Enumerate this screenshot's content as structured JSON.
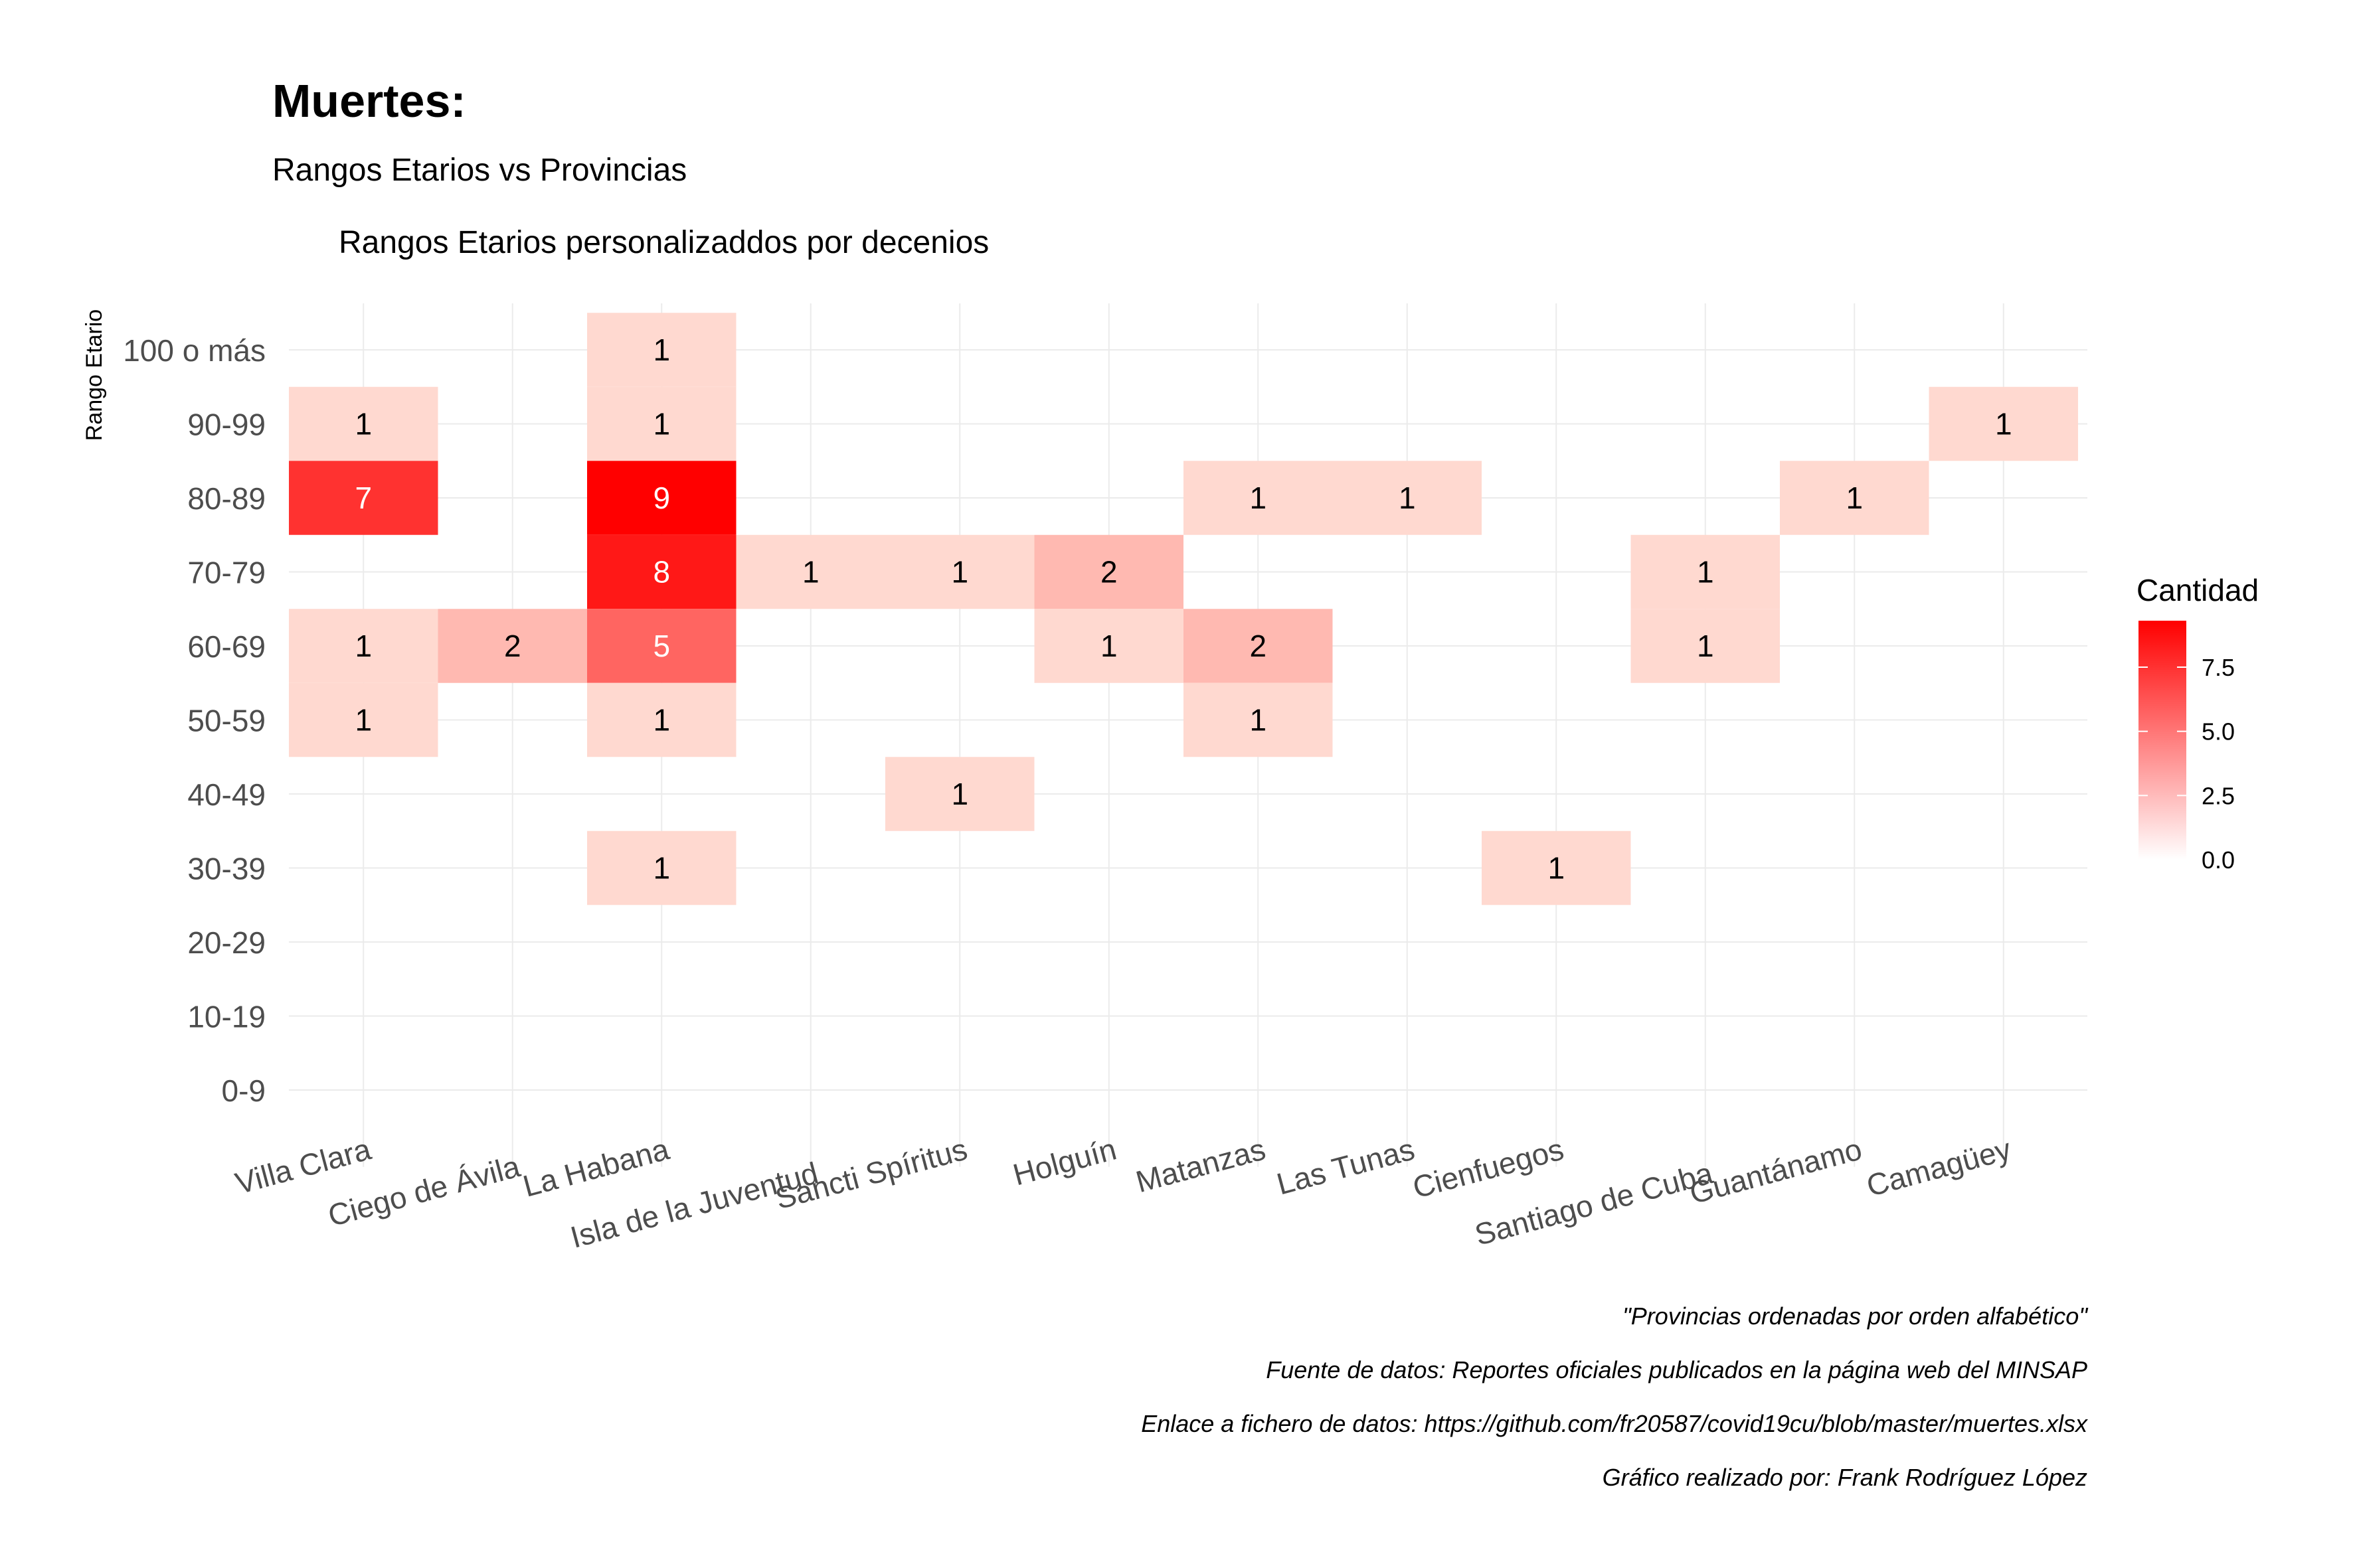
{
  "chart_data": {
    "type": "heatmap",
    "title": "Muertes:",
    "subtitle": "Rangos Etarios vs Provincias",
    "annotation": "Rangos Etarios personalizaddos por decenios",
    "xlabel": "",
    "ylabel": "Rango Etario",
    "x_categories": [
      "Villa Clara",
      "Ciego de Ávila",
      "La Habana",
      "Isla de la Juventud",
      "Sancti Spíritus",
      "Holguín",
      "Matanzas",
      "Las Tunas",
      "Cienfuegos",
      "Santiago de Cuba",
      "Guantánamo",
      "Camagüey"
    ],
    "y_categories": [
      "0-9",
      "10-19",
      "20-29",
      "30-39",
      "40-49",
      "50-59",
      "60-69",
      "70-79",
      "80-89",
      "90-99",
      "100 o más"
    ],
    "cells": [
      {
        "x": "Villa Clara",
        "y": "90-99",
        "value": 1
      },
      {
        "x": "Villa Clara",
        "y": "80-89",
        "value": 7
      },
      {
        "x": "Villa Clara",
        "y": "60-69",
        "value": 1
      },
      {
        "x": "Villa Clara",
        "y": "50-59",
        "value": 1
      },
      {
        "x": "Ciego de Ávila",
        "y": "60-69",
        "value": 2
      },
      {
        "x": "La Habana",
        "y": "100 o más",
        "value": 1
      },
      {
        "x": "La Habana",
        "y": "90-99",
        "value": 1
      },
      {
        "x": "La Habana",
        "y": "80-89",
        "value": 9
      },
      {
        "x": "La Habana",
        "y": "70-79",
        "value": 8
      },
      {
        "x": "La Habana",
        "y": "60-69",
        "value": 5
      },
      {
        "x": "La Habana",
        "y": "50-59",
        "value": 1
      },
      {
        "x": "La Habana",
        "y": "30-39",
        "value": 1
      },
      {
        "x": "Isla de la Juventud",
        "y": "70-79",
        "value": 1
      },
      {
        "x": "Sancti Spíritus",
        "y": "70-79",
        "value": 1
      },
      {
        "x": "Sancti Spíritus",
        "y": "40-49",
        "value": 1
      },
      {
        "x": "Holguín",
        "y": "70-79",
        "value": 2
      },
      {
        "x": "Holguín",
        "y": "60-69",
        "value": 1
      },
      {
        "x": "Matanzas",
        "y": "80-89",
        "value": 1
      },
      {
        "x": "Matanzas",
        "y": "60-69",
        "value": 2
      },
      {
        "x": "Matanzas",
        "y": "50-59",
        "value": 1
      },
      {
        "x": "Las Tunas",
        "y": "80-89",
        "value": 1
      },
      {
        "x": "Cienfuegos",
        "y": "30-39",
        "value": 1
      },
      {
        "x": "Santiago de Cuba",
        "y": "70-79",
        "value": 1
      },
      {
        "x": "Santiago de Cuba",
        "y": "60-69",
        "value": 1
      },
      {
        "x": "Guantánamo",
        "y": "80-89",
        "value": 1
      },
      {
        "x": "Camagüey",
        "y": "90-99",
        "value": 1
      }
    ],
    "legend": {
      "title": "Cantidad",
      "position": "right",
      "breaks": [
        0,
        2.5,
        5,
        7.5
      ],
      "labels": [
        "0.0",
        "2.5",
        "5.0",
        "7.5"
      ],
      "range": [
        0,
        9
      ],
      "low_color": "#ffffff",
      "high_color": "#ff0000"
    },
    "grid": true,
    "captions": [
      "\"Provincias ordenadas por orden alfabético\"",
      "Fuente de datos: Reportes oficiales publicados en la página web del MINSAP",
      "Enlace a fichero de datos: https://github.com/fr20587/covid19cu/blob/master/muertes.xlsx",
      "Gráfico realizado por: Frank Rodríguez López"
    ]
  }
}
